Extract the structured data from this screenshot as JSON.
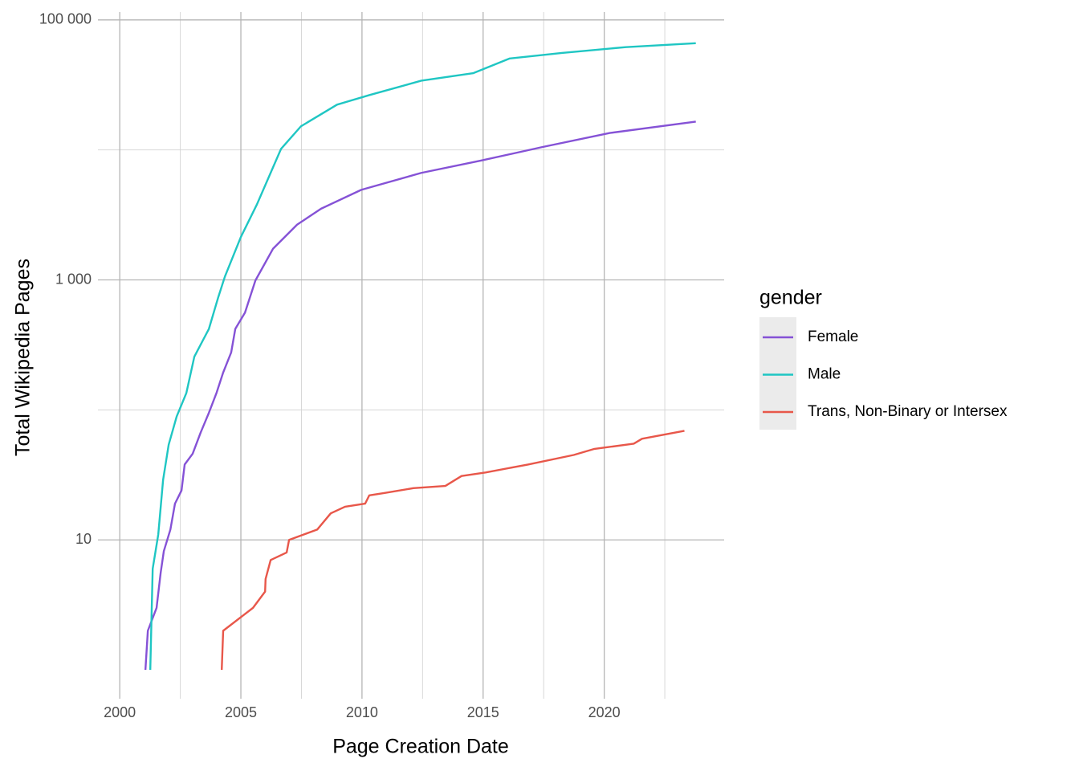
{
  "chart_data": {
    "type": "line",
    "x_label": "Page Creation Date",
    "y_label": "Total Wikipedia Pages",
    "y_log": true,
    "grid": true,
    "legend_title": "gender",
    "legend_position": "right",
    "xlim": [
      1999.1,
      2024.95
    ],
    "xticks": [
      2000,
      2005,
      2010,
      2015,
      2020
    ],
    "x_minor_grid": [
      2002.5,
      2007.5,
      2012.5,
      2017.5,
      2022.5
    ],
    "ylim": [
      0.6,
      115000
    ],
    "yticks": [
      10,
      {
        "value": 1000,
        "label": "1 000"
      },
      {
        "value": 100000,
        "label": "100 000"
      }
    ],
    "y_minor_grid": [
      100,
      10000
    ],
    "series": [
      {
        "name": "Female",
        "color": "#8552d6",
        "x": [
          2001.06,
          2001.16,
          2001.52,
          2001.69,
          2001.82,
          2002.09,
          2002.28,
          2002.55,
          2002.68,
          2003.01,
          2003.34,
          2003.68,
          2004.0,
          2004.27,
          2004.6,
          2004.77,
          2005.17,
          2005.6,
          2006.33,
          2007.32,
          2008.31,
          2009.97,
          2012.45,
          2014.93,
          2017.42,
          2020.23,
          2023.78
        ],
        "values": [
          1,
          2,
          3,
          5.6,
          8.2,
          12,
          19,
          24,
          38,
          46,
          67,
          95,
          136,
          194,
          277,
          420,
          560,
          990,
          1740,
          2660,
          3530,
          4930,
          6660,
          8290,
          10500,
          13500,
          16500
        ]
      },
      {
        "name": "Male",
        "color": "#1fc6c3",
        "x": [
          2001.26,
          2001.36,
          2001.59,
          2001.79,
          2002.02,
          2002.35,
          2002.75,
          2003.08,
          2003.68,
          2004.07,
          2004.34,
          2005.0,
          2005.66,
          2006.66,
          2007.48,
          2008.97,
          2010.3,
          2012.45,
          2014.6,
          2016.09,
          2018.25,
          2020.89,
          2023.78
        ],
        "values": [
          1,
          6,
          11,
          29,
          54,
          89,
          135,
          257,
          420,
          740,
          1060,
          2140,
          3800,
          10200,
          15200,
          22300,
          26400,
          34100,
          39000,
          50500,
          55700,
          61800,
          66200
        ]
      },
      {
        "name": "Trans, Non-Binary or Intersex",
        "color": "#e8574a",
        "x": [
          2004.21,
          2004.27,
          2005.5,
          2006.0,
          2006.02,
          2006.23,
          2006.89,
          2006.99,
          2008.15,
          2008.71,
          2009.3,
          2010.13,
          2010.3,
          2010.96,
          2012.12,
          2013.44,
          2014.11,
          2015.1,
          2016.85,
          2018.74,
          2019.57,
          2021.22,
          2021.56,
          2023.31
        ],
        "values": [
          1,
          2,
          3,
          4,
          5,
          7,
          8,
          10,
          12,
          16,
          18,
          19,
          22,
          23,
          25,
          26,
          31,
          33,
          38,
          45,
          50,
          55,
          60,
          69
        ]
      }
    ]
  }
}
